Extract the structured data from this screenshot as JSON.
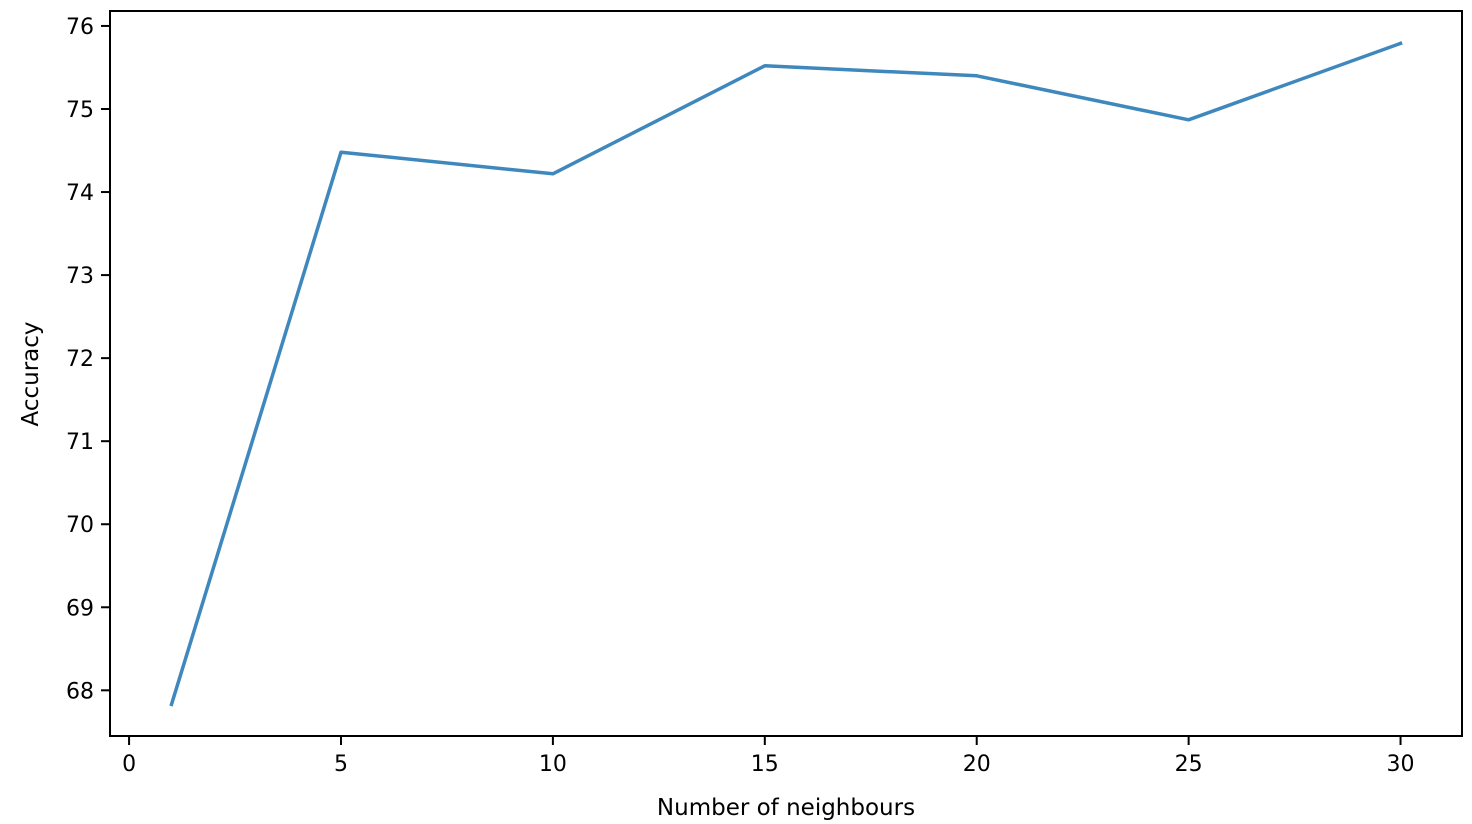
{
  "chart_data": {
    "type": "line",
    "title": "",
    "xlabel": "Number of neighbours",
    "ylabel": "Accuracy",
    "x": [
      1,
      5,
      10,
      15,
      20,
      25,
      30
    ],
    "series": [
      {
        "values": [
          67.83,
          74.48,
          74.22,
          75.52,
          75.4,
          74.87,
          75.79
        ]
      }
    ],
    "xlim": [
      -0.45,
      31.45
    ],
    "ylim": [
      67.45,
      76.18
    ],
    "xticks": [
      0,
      5,
      10,
      15,
      20,
      25,
      30
    ],
    "xtick_labels": [
      "0",
      "5",
      "10",
      "15",
      "20",
      "25",
      "30"
    ],
    "yticks": [
      68,
      69,
      70,
      71,
      72,
      73,
      74,
      75,
      76
    ],
    "ytick_labels": [
      "68",
      "69",
      "70",
      "71",
      "72",
      "73",
      "74",
      "75",
      "76"
    ],
    "grid": false,
    "colors": {
      "line": "#3f88bd",
      "axes": "#000000"
    }
  }
}
